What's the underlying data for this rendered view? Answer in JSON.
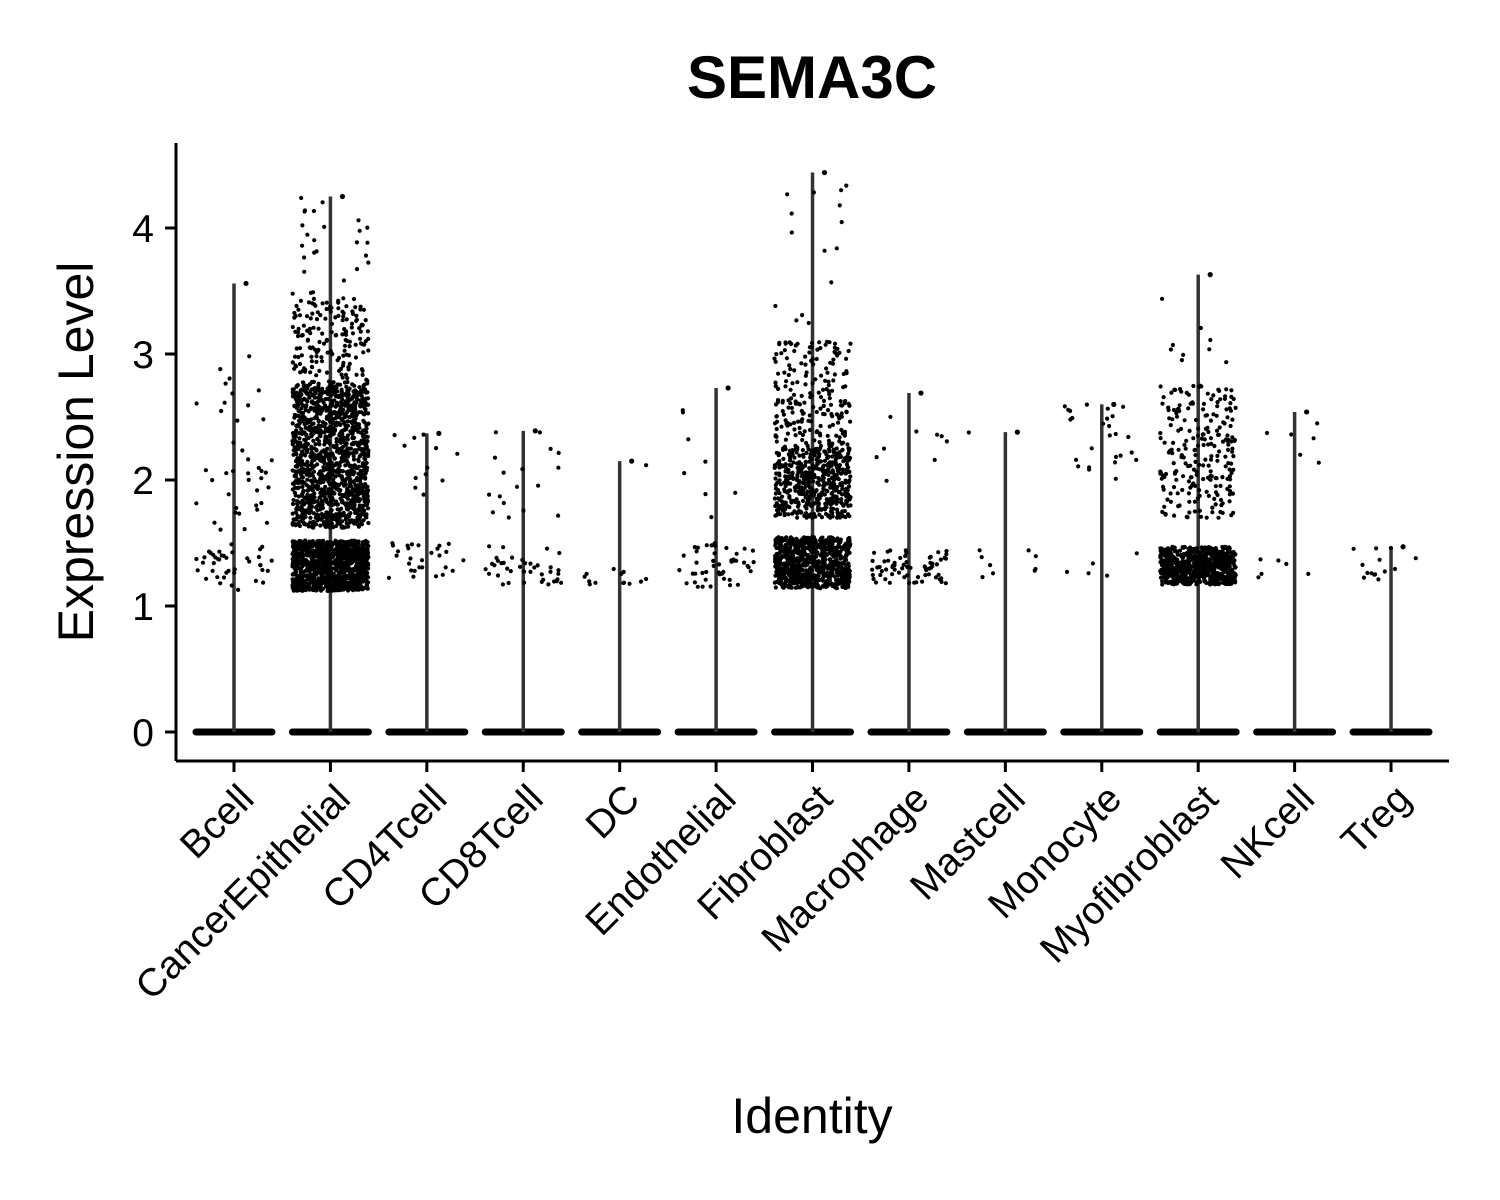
{
  "chart_data": {
    "type": "scatter",
    "subtype": "violin-jitter",
    "title": "SEMA3C",
    "xlabel": "Identity",
    "ylabel": "Expression Level",
    "ylim": [
      -0.22,
      4.7
    ],
    "yticks": [
      0,
      1,
      2,
      3,
      4
    ],
    "grid": false,
    "legend": "none",
    "point_color": "#000000",
    "violin_color": "#333333",
    "categories": [
      "Bcell",
      "CancerEpithelial",
      "CD4Tcell",
      "CD8Tcell",
      "DC",
      "Endothelial",
      "Fibroblast",
      "Macrophage",
      "Mastcell",
      "Monocyte",
      "Myofibroblast",
      "NKcell",
      "Treg"
    ],
    "series": [
      {
        "category": "Bcell",
        "max": 3.56,
        "nonzero_points": 80,
        "bands": [
          [
            1.12,
            1.5,
            0.5
          ],
          [
            1.6,
            2.3,
            0.35
          ],
          [
            2.4,
            3.0,
            0.15
          ]
        ]
      },
      {
        "category": "CancerEpithelial",
        "max": 4.25,
        "nonzero_points": 2600,
        "bands": [
          [
            1.12,
            1.52,
            0.42
          ],
          [
            1.62,
            2.75,
            0.5
          ],
          [
            2.75,
            3.45,
            0.07
          ],
          [
            3.45,
            4.25,
            0.01
          ]
        ]
      },
      {
        "category": "CD4Tcell",
        "max": 2.37,
        "nonzero_points": 40,
        "bands": [
          [
            1.2,
            1.5,
            0.7
          ],
          [
            1.85,
            2.37,
            0.3
          ]
        ]
      },
      {
        "category": "CD8Tcell",
        "max": 2.39,
        "nonzero_points": 55,
        "bands": [
          [
            1.17,
            1.48,
            0.7
          ],
          [
            1.7,
            2.39,
            0.3
          ]
        ]
      },
      {
        "category": "DC",
        "max": 2.15,
        "nonzero_points": 14,
        "bands": [
          [
            1.17,
            1.3,
            0.93
          ],
          [
            2.1,
            2.15,
            0.07
          ]
        ]
      },
      {
        "category": "Endothelial",
        "max": 2.73,
        "nonzero_points": 55,
        "bands": [
          [
            1.15,
            1.5,
            0.85
          ],
          [
            1.7,
            2.73,
            0.15
          ]
        ]
      },
      {
        "category": "Fibroblast",
        "max": 4.44,
        "nonzero_points": 1500,
        "bands": [
          [
            1.14,
            1.55,
            0.5
          ],
          [
            1.7,
            2.25,
            0.35
          ],
          [
            2.25,
            3.1,
            0.14
          ],
          [
            3.1,
            4.44,
            0.01
          ]
        ]
      },
      {
        "category": "Macrophage",
        "max": 2.69,
        "nonzero_points": 75,
        "bands": [
          [
            1.18,
            1.45,
            0.88
          ],
          [
            1.95,
            2.69,
            0.12
          ]
        ]
      },
      {
        "category": "Mastcell",
        "max": 2.38,
        "nonzero_points": 10,
        "bands": [
          [
            1.18,
            1.45,
            0.9
          ],
          [
            2.37,
            2.38,
            0.1
          ]
        ]
      },
      {
        "category": "Monocyte",
        "max": 2.6,
        "nonzero_points": 30,
        "bands": [
          [
            1.22,
            1.46,
            0.15
          ],
          [
            2.0,
            2.6,
            0.85
          ]
        ]
      },
      {
        "category": "Myofibroblast",
        "max": 3.63,
        "nonzero_points": 850,
        "bands": [
          [
            1.17,
            1.47,
            0.72
          ],
          [
            1.7,
            2.75,
            0.27
          ],
          [
            2.75,
            3.63,
            0.01
          ]
        ]
      },
      {
        "category": "NKcell",
        "max": 2.54,
        "nonzero_points": 12,
        "bands": [
          [
            1.2,
            1.45,
            0.5
          ],
          [
            1.99,
            2.54,
            0.5
          ]
        ]
      },
      {
        "category": "Treg",
        "max": 1.47,
        "nonzero_points": 14,
        "bands": [
          [
            1.2,
            1.47,
            1.0
          ]
        ]
      }
    ]
  }
}
